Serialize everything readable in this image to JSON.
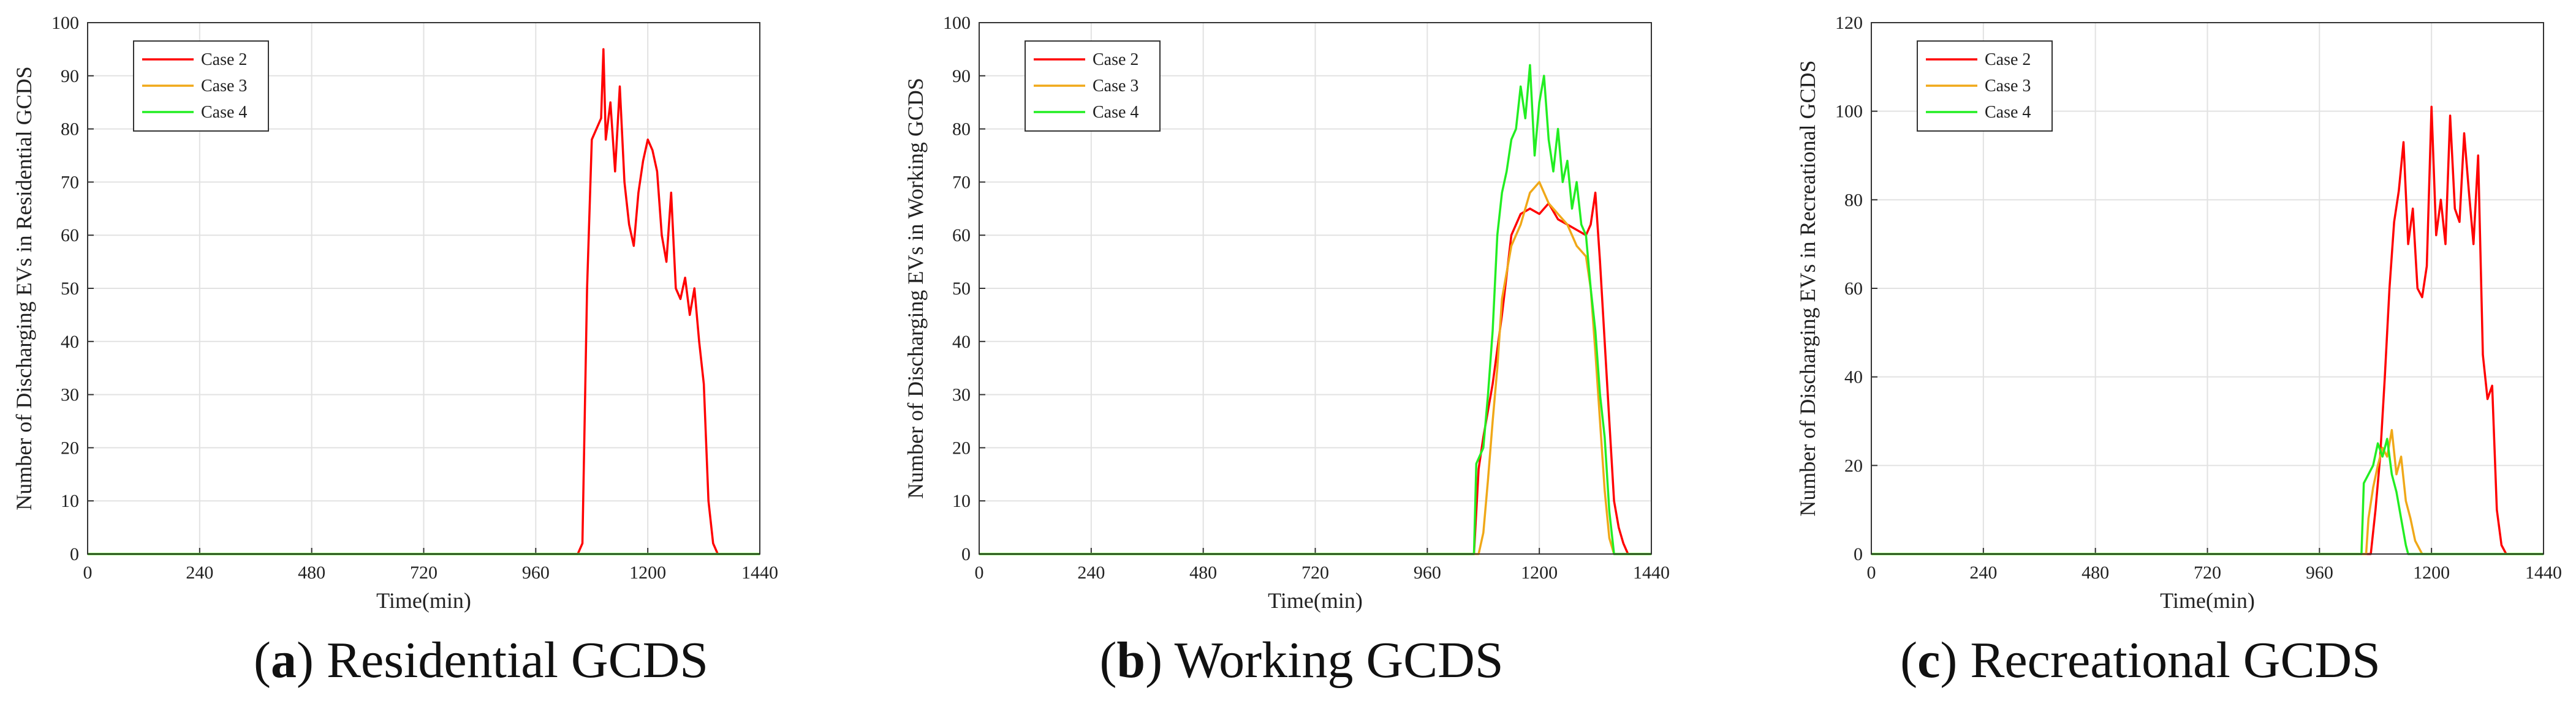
{
  "chart_data": [
    {
      "type": "line",
      "panel": "a",
      "caption": "Residential GCDS",
      "xlabel": "Time(min)",
      "ylabel": "Number of Discharging EVs in Residential GCDS",
      "xlim": [
        0,
        1440
      ],
      "ylim": [
        0,
        100
      ],
      "xticks": [
        0,
        240,
        480,
        720,
        960,
        1200,
        1440
      ],
      "yticks": [
        0,
        10,
        20,
        30,
        40,
        50,
        60,
        70,
        80,
        90,
        100
      ],
      "grid": true,
      "legend_position": "top-left",
      "series": [
        {
          "name": "Case 2",
          "color": "#ff0000",
          "x": [
            0,
            1050,
            1060,
            1070,
            1080,
            1090,
            1100,
            1105,
            1110,
            1120,
            1130,
            1140,
            1150,
            1160,
            1170,
            1180,
            1190,
            1200,
            1210,
            1220,
            1230,
            1240,
            1250,
            1260,
            1270,
            1280,
            1290,
            1300,
            1310,
            1320,
            1330,
            1340,
            1350,
            1440
          ],
          "y": [
            0,
            0,
            2,
            50,
            78,
            80,
            82,
            95,
            78,
            85,
            72,
            88,
            70,
            62,
            58,
            68,
            74,
            78,
            76,
            72,
            60,
            55,
            68,
            50,
            48,
            52,
            45,
            50,
            40,
            32,
            10,
            2,
            0,
            0
          ]
        },
        {
          "name": "Case 3",
          "color": "#f0a818",
          "x": [
            0,
            1440
          ],
          "y": [
            0,
            0
          ]
        },
        {
          "name": "Case 4",
          "color": "#22ee22",
          "x": [
            0,
            1440
          ],
          "y": [
            0,
            0
          ]
        }
      ]
    },
    {
      "type": "line",
      "panel": "b",
      "caption": "Working GCDS",
      "xlabel": "Time(min)",
      "ylabel": "Number of Discharging EVs in Working GCDS",
      "xlim": [
        0,
        1440
      ],
      "ylim": [
        0,
        100
      ],
      "xticks": [
        0,
        240,
        480,
        720,
        960,
        1200,
        1440
      ],
      "yticks": [
        0,
        10,
        20,
        30,
        40,
        50,
        60,
        70,
        80,
        90,
        100
      ],
      "grid": true,
      "legend_position": "top-left",
      "series": [
        {
          "name": "Case 2",
          "color": "#ff0000",
          "x": [
            0,
            1060,
            1070,
            1080,
            1100,
            1120,
            1140,
            1160,
            1180,
            1200,
            1220,
            1240,
            1260,
            1280,
            1300,
            1310,
            1320,
            1330,
            1340,
            1350,
            1360,
            1370,
            1380,
            1390,
            1440
          ],
          "y": [
            0,
            0,
            16,
            22,
            32,
            45,
            60,
            64,
            65,
            64,
            66,
            63,
            62,
            61,
            60,
            62,
            68,
            55,
            40,
            25,
            10,
            5,
            2,
            0,
            0
          ]
        },
        {
          "name": "Case 3",
          "color": "#f0a818",
          "x": [
            0,
            1070,
            1080,
            1090,
            1100,
            1110,
            1120,
            1140,
            1160,
            1180,
            1200,
            1220,
            1240,
            1260,
            1280,
            1300,
            1310,
            1320,
            1330,
            1340,
            1350,
            1360,
            1440
          ],
          "y": [
            0,
            0,
            4,
            14,
            25,
            35,
            48,
            58,
            62,
            68,
            70,
            66,
            64,
            62,
            58,
            56,
            50,
            38,
            25,
            12,
            3,
            0,
            0
          ]
        },
        {
          "name": "Case 4",
          "color": "#22ee22",
          "x": [
            0,
            1060,
            1065,
            1080,
            1090,
            1100,
            1110,
            1120,
            1130,
            1140,
            1150,
            1160,
            1170,
            1180,
            1190,
            1200,
            1210,
            1220,
            1230,
            1240,
            1250,
            1260,
            1270,
            1280,
            1290,
            1300,
            1310,
            1320,
            1330,
            1340,
            1350,
            1360,
            1440
          ],
          "y": [
            0,
            0,
            17,
            20,
            30,
            42,
            60,
            68,
            72,
            78,
            80,
            88,
            82,
            92,
            75,
            85,
            90,
            78,
            72,
            80,
            70,
            74,
            65,
            70,
            62,
            60,
            50,
            42,
            30,
            22,
            8,
            0,
            0
          ]
        }
      ]
    },
    {
      "type": "line",
      "panel": "c",
      "caption": "Recreational GCDS",
      "xlabel": "Time(min)",
      "ylabel": "Number of Discharging EVs in Recreational GCDS",
      "xlim": [
        0,
        1440
      ],
      "ylim": [
        0,
        120
      ],
      "xticks": [
        0,
        240,
        480,
        720,
        960,
        1200,
        1440
      ],
      "yticks": [
        0,
        20,
        40,
        60,
        80,
        100,
        120
      ],
      "grid": true,
      "legend_position": "top-left",
      "series": [
        {
          "name": "Case 2",
          "color": "#ff0000",
          "x": [
            0,
            1070,
            1080,
            1090,
            1100,
            1110,
            1120,
            1130,
            1140,
            1150,
            1160,
            1170,
            1180,
            1190,
            1200,
            1210,
            1220,
            1230,
            1240,
            1250,
            1260,
            1270,
            1280,
            1290,
            1300,
            1310,
            1320,
            1330,
            1340,
            1350,
            1360,
            1440
          ],
          "y": [
            0,
            0,
            10,
            22,
            40,
            60,
            75,
            82,
            93,
            70,
            78,
            60,
            58,
            65,
            101,
            72,
            80,
            70,
            99,
            78,
            75,
            95,
            82,
            70,
            90,
            45,
            35,
            38,
            10,
            2,
            0,
            0
          ]
        },
        {
          "name": "Case 3",
          "color": "#f0a818",
          "x": [
            0,
            1060,
            1065,
            1075,
            1085,
            1095,
            1105,
            1115,
            1125,
            1135,
            1145,
            1155,
            1165,
            1175,
            1180,
            1440
          ],
          "y": [
            0,
            0,
            8,
            15,
            20,
            24,
            22,
            28,
            18,
            22,
            12,
            8,
            3,
            1,
            0,
            0
          ]
        },
        {
          "name": "Case 4",
          "color": "#22ee22",
          "x": [
            0,
            1050,
            1055,
            1065,
            1075,
            1085,
            1095,
            1105,
            1115,
            1125,
            1135,
            1145,
            1150,
            1440
          ],
          "y": [
            0,
            0,
            16,
            18,
            20,
            25,
            22,
            26,
            18,
            14,
            8,
            2,
            0,
            0
          ]
        }
      ]
    }
  ]
}
